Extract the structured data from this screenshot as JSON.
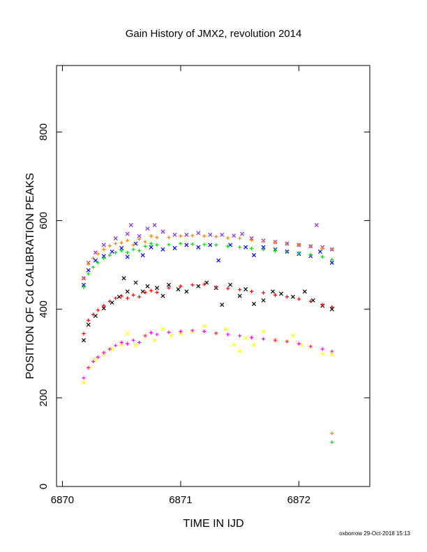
{
  "chart_data": {
    "type": "scatter",
    "title": "Gain History of JMX2, revolution 2014",
    "xlabel": "TIME IN IJD",
    "ylabel": "POSITION OF Cd CALIBRATION PEAKS",
    "xlim": [
      6869.95,
      6872.6
    ],
    "ylim": [
      0,
      950
    ],
    "x_ticks": [
      6870,
      6871,
      6872
    ],
    "y_ticks": [
      0,
      200,
      400,
      600,
      800
    ],
    "grid": false,
    "legend": "none",
    "footer": "oxborrow 29-Oct-2018 15:13",
    "series": [
      {
        "marker": "x",
        "color": "#8a2be2",
        "points": [
          [
            6870.18,
            470
          ],
          [
            6870.22,
            505
          ],
          [
            6870.28,
            528
          ],
          [
            6870.35,
            545
          ],
          [
            6870.45,
            560
          ],
          [
            6870.55,
            570
          ],
          [
            6870.58,
            590
          ],
          [
            6870.65,
            565
          ],
          [
            6870.72,
            582
          ],
          [
            6870.78,
            590
          ],
          [
            6870.85,
            575
          ],
          [
            6870.95,
            568
          ],
          [
            6871.05,
            568
          ],
          [
            6871.15,
            572
          ],
          [
            6871.25,
            568
          ],
          [
            6871.35,
            568
          ],
          [
            6871.45,
            566
          ],
          [
            6871.52,
            570
          ],
          [
            6871.6,
            560
          ],
          [
            6871.7,
            555
          ],
          [
            6871.8,
            552
          ],
          [
            6871.9,
            548
          ],
          [
            6872.0,
            545
          ],
          [
            6872.1,
            542
          ],
          [
            6872.15,
            590
          ],
          [
            6872.2,
            540
          ],
          [
            6872.28,
            535
          ]
        ]
      },
      {
        "marker": "x",
        "color": "#0000ff",
        "points": [
          [
            6870.18,
            455
          ],
          [
            6870.22,
            488
          ],
          [
            6870.28,
            510
          ],
          [
            6870.35,
            520
          ],
          [
            6870.42,
            530
          ],
          [
            6870.5,
            538
          ],
          [
            6870.55,
            518
          ],
          [
            6870.62,
            548
          ],
          [
            6870.68,
            522
          ],
          [
            6870.75,
            540
          ],
          [
            6870.85,
            535
          ],
          [
            6870.95,
            538
          ],
          [
            6871.05,
            545
          ],
          [
            6871.15,
            540
          ],
          [
            6871.25,
            545
          ],
          [
            6871.32,
            510
          ],
          [
            6871.42,
            545
          ],
          [
            6871.55,
            540
          ],
          [
            6871.62,
            522
          ],
          [
            6871.7,
            540
          ],
          [
            6871.8,
            535
          ],
          [
            6871.9,
            530
          ],
          [
            6872.0,
            525
          ],
          [
            6872.1,
            520
          ],
          [
            6872.18,
            530
          ],
          [
            6872.28,
            505
          ]
        ]
      },
      {
        "marker": "+",
        "color": "#ff7f00",
        "points": [
          [
            6870.18,
            470
          ],
          [
            6870.22,
            502
          ],
          [
            6870.26,
            515
          ],
          [
            6870.3,
            525
          ],
          [
            6870.35,
            535
          ],
          [
            6870.4,
            543
          ],
          [
            6870.45,
            548
          ],
          [
            6870.5,
            550
          ],
          [
            6870.55,
            555
          ],
          [
            6870.6,
            545
          ],
          [
            6870.65,
            558
          ],
          [
            6870.7,
            552
          ],
          [
            6870.75,
            565
          ],
          [
            6870.8,
            562
          ],
          [
            6870.9,
            562
          ],
          [
            6871.0,
            565
          ],
          [
            6871.1,
            566
          ],
          [
            6871.2,
            565
          ],
          [
            6871.3,
            564
          ],
          [
            6871.4,
            561
          ],
          [
            6871.5,
            560
          ],
          [
            6871.6,
            556
          ],
          [
            6871.7,
            553
          ],
          [
            6871.8,
            551
          ],
          [
            6871.9,
            548
          ],
          [
            6872.0,
            545
          ],
          [
            6872.1,
            542
          ],
          [
            6872.2,
            538
          ],
          [
            6872.28,
            535
          ],
          [
            6872.28,
            120
          ]
        ]
      },
      {
        "marker": "+",
        "color": "#00dd00",
        "points": [
          [
            6870.18,
            450
          ],
          [
            6870.22,
            480
          ],
          [
            6870.26,
            495
          ],
          [
            6870.3,
            505
          ],
          [
            6870.35,
            515
          ],
          [
            6870.4,
            522
          ],
          [
            6870.45,
            528
          ],
          [
            6870.5,
            532
          ],
          [
            6870.55,
            528
          ],
          [
            6870.6,
            535
          ],
          [
            6870.65,
            532
          ],
          [
            6870.7,
            542
          ],
          [
            6870.75,
            548
          ],
          [
            6870.8,
            545
          ],
          [
            6870.9,
            546
          ],
          [
            6871.0,
            548
          ],
          [
            6871.1,
            547
          ],
          [
            6871.2,
            546
          ],
          [
            6871.3,
            545
          ],
          [
            6871.4,
            542
          ],
          [
            6871.5,
            540
          ],
          [
            6871.6,
            537
          ],
          [
            6871.7,
            535
          ],
          [
            6871.8,
            532
          ],
          [
            6871.9,
            530
          ],
          [
            6872.0,
            527
          ],
          [
            6872.1,
            523
          ],
          [
            6872.2,
            518
          ],
          [
            6872.28,
            512
          ],
          [
            6872.28,
            100
          ]
        ]
      },
      {
        "marker": "x",
        "color": "#000000",
        "points": [
          [
            6870.18,
            330
          ],
          [
            6870.22,
            365
          ],
          [
            6870.28,
            385
          ],
          [
            6870.35,
            402
          ],
          [
            6870.42,
            415
          ],
          [
            6870.48,
            428
          ],
          [
            6870.52,
            470
          ],
          [
            6870.55,
            440
          ],
          [
            6870.62,
            460
          ],
          [
            6870.68,
            440
          ],
          [
            6870.72,
            452
          ],
          [
            6870.8,
            448
          ],
          [
            6870.85,
            430
          ],
          [
            6870.9,
            455
          ],
          [
            6870.98,
            445
          ],
          [
            6871.05,
            440
          ],
          [
            6871.15,
            452
          ],
          [
            6871.22,
            460
          ],
          [
            6871.3,
            448
          ],
          [
            6871.35,
            410
          ],
          [
            6871.42,
            455
          ],
          [
            6871.5,
            430
          ],
          [
            6871.55,
            445
          ],
          [
            6871.62,
            412
          ],
          [
            6871.7,
            420
          ],
          [
            6871.78,
            440
          ],
          [
            6871.85,
            435
          ],
          [
            6871.95,
            428
          ],
          [
            6872.05,
            440
          ],
          [
            6872.12,
            420
          ],
          [
            6872.2,
            408
          ],
          [
            6872.28,
            400
          ]
        ]
      },
      {
        "marker": "+",
        "color": "#ff0000",
        "points": [
          [
            6870.18,
            345
          ],
          [
            6870.22,
            375
          ],
          [
            6870.26,
            388
          ],
          [
            6870.3,
            398
          ],
          [
            6870.35,
            408
          ],
          [
            6870.4,
            418
          ],
          [
            6870.45,
            425
          ],
          [
            6870.5,
            430
          ],
          [
            6870.55,
            425
          ],
          [
            6870.6,
            432
          ],
          [
            6870.65,
            428
          ],
          [
            6870.7,
            438
          ],
          [
            6870.75,
            442
          ],
          [
            6870.8,
            438
          ],
          [
            6870.9,
            448
          ],
          [
            6871.0,
            452
          ],
          [
            6871.1,
            455
          ],
          [
            6871.2,
            456
          ],
          [
            6871.3,
            450
          ],
          [
            6871.4,
            447
          ],
          [
            6871.5,
            444
          ],
          [
            6871.6,
            440
          ],
          [
            6871.7,
            437
          ],
          [
            6871.8,
            432
          ],
          [
            6871.9,
            428
          ],
          [
            6872.0,
            423
          ],
          [
            6872.1,
            418
          ],
          [
            6872.2,
            410
          ],
          [
            6872.28,
            405
          ]
        ]
      },
      {
        "marker": "x",
        "color": "#ffff00",
        "points": [
          [
            6870.18,
            235
          ],
          [
            6870.22,
            268
          ],
          [
            6870.28,
            285
          ],
          [
            6870.35,
            298
          ],
          [
            6870.42,
            310
          ],
          [
            6870.5,
            320
          ],
          [
            6870.55,
            345
          ],
          [
            6870.62,
            318
          ],
          [
            6870.7,
            340
          ],
          [
            6870.78,
            330
          ],
          [
            6870.85,
            355
          ],
          [
            6870.92,
            340
          ],
          [
            6871.0,
            345
          ],
          [
            6871.1,
            350
          ],
          [
            6871.2,
            362
          ],
          [
            6871.3,
            345
          ],
          [
            6871.38,
            355
          ],
          [
            6871.45,
            320
          ],
          [
            6871.5,
            305
          ],
          [
            6871.55,
            335
          ],
          [
            6871.62,
            320
          ],
          [
            6871.7,
            350
          ],
          [
            6871.8,
            330
          ],
          [
            6871.9,
            328
          ],
          [
            6871.95,
            340
          ],
          [
            6872.02,
            320
          ],
          [
            6872.1,
            315
          ],
          [
            6872.2,
            300
          ],
          [
            6872.28,
            298
          ]
        ]
      },
      {
        "marker": "+",
        "color": "#ff00ff",
        "points": [
          [
            6870.18,
            245
          ],
          [
            6870.22,
            268
          ],
          [
            6870.26,
            282
          ],
          [
            6870.3,
            292
          ],
          [
            6870.35,
            302
          ],
          [
            6870.4,
            310
          ],
          [
            6870.45,
            318
          ],
          [
            6870.5,
            325
          ],
          [
            6870.55,
            322
          ],
          [
            6870.6,
            330
          ],
          [
            6870.65,
            325
          ],
          [
            6870.7,
            340
          ],
          [
            6870.75,
            347
          ],
          [
            6870.8,
            343
          ],
          [
            6870.9,
            348
          ],
          [
            6871.0,
            350
          ],
          [
            6871.1,
            352
          ],
          [
            6871.2,
            350
          ],
          [
            6871.3,
            346
          ],
          [
            6871.4,
            343
          ],
          [
            6871.5,
            340
          ],
          [
            6871.6,
            336
          ],
          [
            6871.7,
            333
          ],
          [
            6871.8,
            330
          ],
          [
            6871.9,
            327
          ],
          [
            6872.0,
            322
          ],
          [
            6872.1,
            316
          ],
          [
            6872.2,
            310
          ],
          [
            6872.28,
            305
          ]
        ]
      }
    ]
  }
}
